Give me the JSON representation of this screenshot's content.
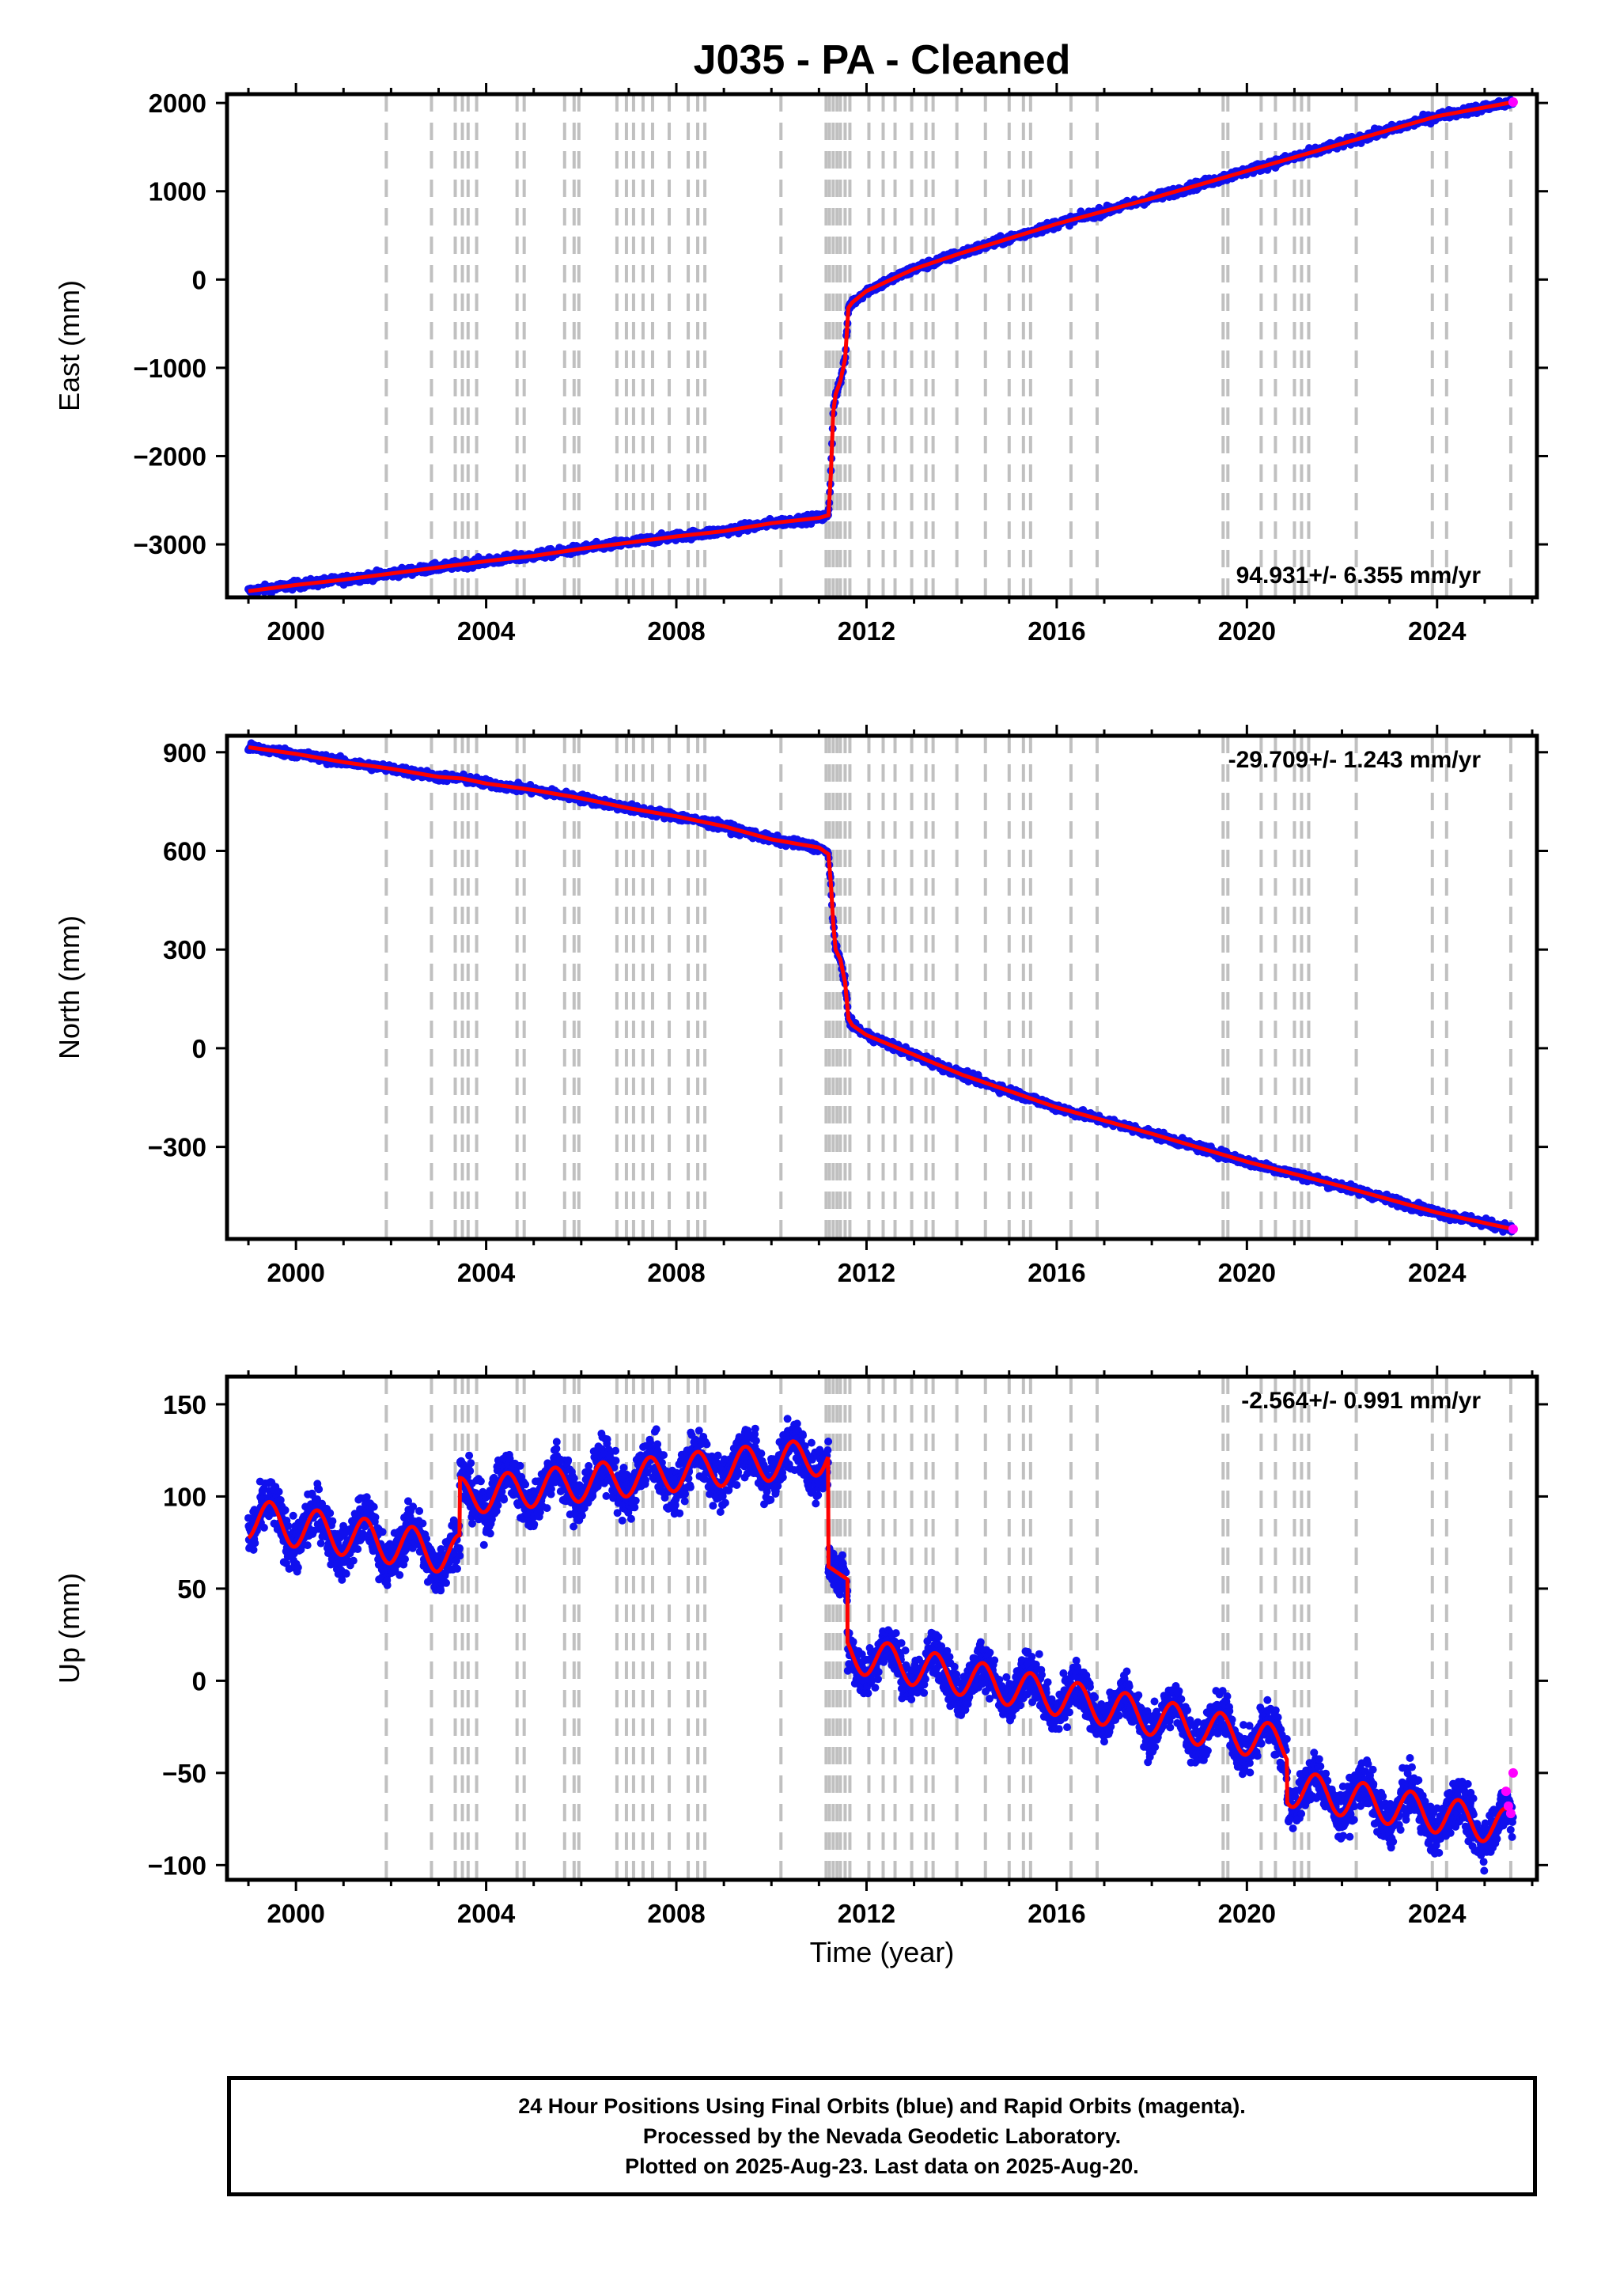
{
  "chart_data": {
    "title": "J035  - PA - Cleaned",
    "xlabel": "Time (year)",
    "x_tick_labels": [
      "2000",
      "2004",
      "2008",
      "2012",
      "2016",
      "2020",
      "2024"
    ],
    "xlim": [
      1998.55,
      2026.1
    ],
    "legend_note": "Final Orbits (blue), Rapid Orbits (magenta), model fit (red)",
    "colors": {
      "final": "#1010ee",
      "rapid": "#ff00ff",
      "model": "#ff0000",
      "event_lines": "#c0c0c0"
    },
    "event_lines": [
      2001.9,
      2002.85,
      2003.35,
      2003.5,
      2003.62,
      2003.8,
      2004.65,
      2004.8,
      2005.65,
      2005.85,
      2005.95,
      2006.75,
      2006.95,
      2007.1,
      2007.3,
      2007.5,
      2007.85,
      2008.25,
      2008.45,
      2008.6,
      2010.2,
      2011.15,
      2011.22,
      2011.3,
      2011.38,
      2011.45,
      2011.55,
      2011.65,
      2012.05,
      2012.35,
      2012.6,
      2012.95,
      2013.25,
      2013.4,
      2013.9,
      2014.5,
      2015.0,
      2015.3,
      2015.45,
      2016.3,
      2016.85,
      2019.5,
      2019.6,
      2020.3,
      2020.6,
      2021.0,
      2021.15,
      2021.3,
      2022.3,
      2023.9,
      2024.2,
      2025.55
    ],
    "panels": [
      {
        "type": "scatter",
        "ylabel": "East (mm)",
        "ylim": [
          -3600,
          2100
        ],
        "y_tick_labels": [
          "2000",
          "1000",
          "0",
          "−1000",
          "−2000",
          "−3000"
        ],
        "y_ticks": [
          2000,
          1000,
          0,
          -1000,
          -2000,
          -3000
        ],
        "rate_label": "94.931+/- 6.355 mm/yr",
        "rate_position": "bottom-right",
        "series": [
          {
            "x": [
              1999.0,
              2000.0,
              2001.0,
              2002.0,
              2003.0,
              2004.0,
              2005.0,
              2006.0,
              2007.0,
              2008.0,
              2009.0,
              2010.0,
              2011.0,
              2011.2,
              2011.25,
              2011.3,
              2011.35,
              2011.45,
              2011.55,
              2011.62,
              2011.7,
              2012.0,
              2013.0,
              2014.0,
              2016.0,
              2018.0,
              2020.0,
              2022.0,
              2024.0,
              2025.6
            ],
            "y": [
              -3530,
              -3460,
              -3400,
              -3330,
              -3260,
              -3190,
              -3130,
              -3050,
              -2980,
              -2910,
              -2850,
              -2760,
              -2700,
              -2670,
              -2200,
              -1500,
              -1300,
              -1150,
              -900,
              -320,
              -260,
              -130,
              120,
              300,
              630,
              920,
              1230,
              1540,
              1850,
              2010
            ]
          }
        ]
      },
      {
        "type": "scatter",
        "ylabel": "North (mm)",
        "ylim": [
          -580,
          950
        ],
        "y_tick_labels": [
          "900",
          "600",
          "300",
          "0",
          "−300"
        ],
        "y_ticks": [
          900,
          600,
          300,
          0,
          -300
        ],
        "rate_label": "-29.709+/- 1.243 mm/yr",
        "rate_position": "top-right",
        "series": [
          {
            "x": [
              1999.0,
              2000.0,
              2001.0,
              2002.0,
              2003.0,
              2003.5,
              2004.0,
              2005.0,
              2006.0,
              2007.0,
              2008.0,
              2009.0,
              2010.0,
              2011.0,
              2011.2,
              2011.25,
              2011.3,
              2011.35,
              2011.45,
              2011.55,
              2011.62,
              2011.7,
              2012.0,
              2013.0,
              2014.0,
              2016.0,
              2018.0,
              2020.0,
              2022.0,
              2024.0,
              2025.6
            ],
            "y": [
              915,
              895,
              870,
              850,
              825,
              820,
              805,
              785,
              760,
              730,
              705,
              675,
              635,
              610,
              590,
              500,
              380,
              300,
              270,
              200,
              90,
              70,
              40,
              -20,
              -80,
              -180,
              -260,
              -345,
              -420,
              -500,
              -550
            ]
          }
        ]
      },
      {
        "type": "scatter",
        "ylabel": "Up (mm)",
        "ylim": [
          -108,
          165
        ],
        "y_tick_labels": [
          "150",
          "100",
          "50",
          "0",
          "−50",
          "−100"
        ],
        "y_ticks": [
          150,
          100,
          50,
          0,
          -50,
          -100
        ],
        "rate_label": "-2.564+/- 0.991 mm/yr",
        "rate_position": "top-right",
        "segments": [
          {
            "x_range": [
              1999.0,
              2003.45
            ],
            "level_start": 88,
            "level_end": 68,
            "amplitude": 11,
            "scatter": 12
          },
          {
            "x_range": [
              2003.45,
              2011.2
            ],
            "level_start": 100,
            "level_end": 122,
            "amplitude": 10,
            "scatter": 12
          },
          {
            "x_range": [
              2011.2,
              2011.6
            ],
            "level_start": 62,
            "level_end": 55,
            "amplitude": 0,
            "scatter": 10
          },
          {
            "x_range": [
              2011.6,
              2020.85
            ],
            "level_start": 15,
            "level_end": -35,
            "amplitude": 10,
            "scatter": 11
          },
          {
            "x_range": [
              2020.85,
              2025.6
            ],
            "level_start": -58,
            "level_end": -80,
            "amplitude": 10,
            "scatter": 11
          }
        ],
        "rapid_points": {
          "x": [
            2025.45,
            2025.5,
            2025.55,
            2025.6
          ],
          "y": [
            -60,
            -68,
            -72,
            -50
          ]
        }
      }
    ]
  },
  "footer": {
    "line1": "24 Hour Positions Using Final Orbits (blue) and Rapid Orbits (magenta).",
    "line2": "Processed by the Nevada Geodetic Laboratory.",
    "line3": "Plotted on 2025-Aug-23. Last data on 2025-Aug-20."
  }
}
